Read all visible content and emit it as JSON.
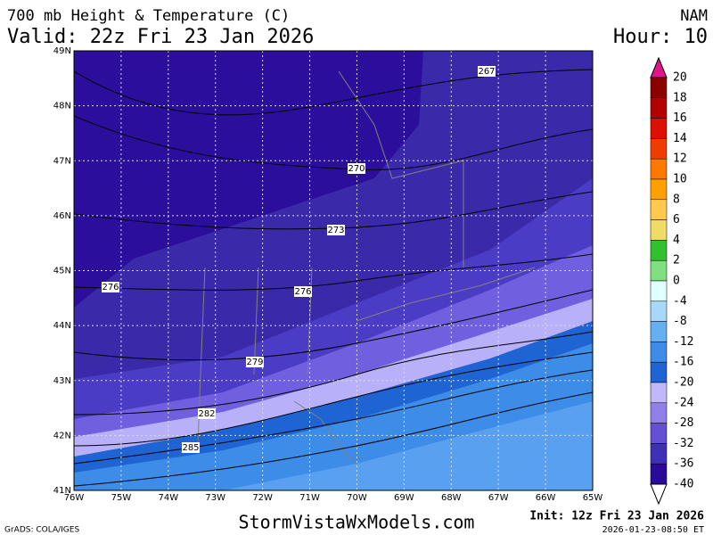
{
  "header": {
    "title": "700 mb Height & Temperature (C)",
    "valid": "Valid: 22z Fri 23 Jan 2026",
    "model": "NAM",
    "hour": "Hour: 10"
  },
  "map": {
    "lat_labels": [
      "49N",
      "48N",
      "47N",
      "46N",
      "45N",
      "44N",
      "43N",
      "42N",
      "41N"
    ],
    "lon_labels": [
      "76W",
      "75W",
      "74W",
      "73W",
      "72W",
      "71W",
      "70W",
      "69W",
      "68W",
      "67W",
      "66W",
      "65W"
    ],
    "contour_labels": [
      "267",
      "270",
      "273",
      "276",
      "276",
      "279",
      "282",
      "285"
    ]
  },
  "colorbar": {
    "levels": [
      20,
      18,
      16,
      14,
      12,
      10,
      8,
      6,
      4,
      2,
      0,
      -4,
      -8,
      -12,
      -16,
      -20,
      -24,
      -28,
      -32,
      -36,
      -40
    ],
    "colors": [
      "#e0158a",
      "#8b0000",
      "#b40000",
      "#dc1000",
      "#f03c00",
      "#ff7800",
      "#ffa000",
      "#ffc850",
      "#f0dc64",
      "#30c030",
      "#80e080",
      "#e0ffff",
      "#a8d8f8",
      "#64b0f0",
      "#3c8ce8",
      "#1e64d2",
      "#c0b8f8",
      "#9080e8",
      "#6450d2",
      "#4030b4",
      "#2a0a98",
      "#ffffff"
    ]
  },
  "footer": {
    "credit": "GrADS: COLA/IGES",
    "site": "StormVistaWxModels.com",
    "init": "Init: 12z Fri 23 Jan 2026",
    "timestamp": "2026-01-23-08:50 ET"
  }
}
